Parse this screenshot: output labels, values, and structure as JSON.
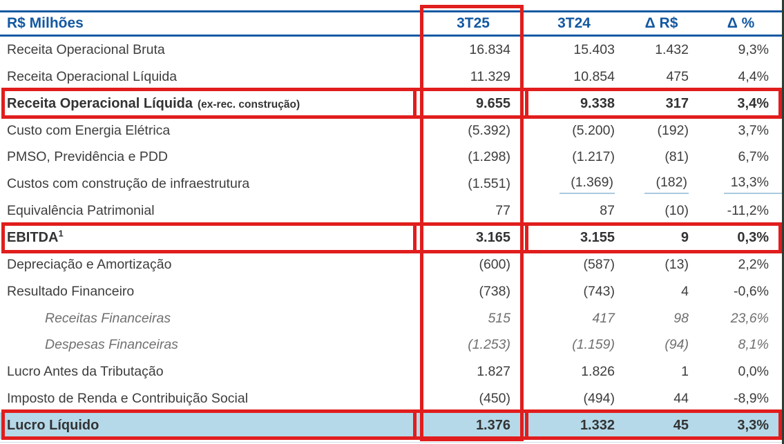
{
  "colors": {
    "header_blue": "#1358a1",
    "highlight_red": "#e11d1d",
    "net_income_row_bg": "#b5d9e9",
    "underline_blue": "#a9c9e0",
    "body_text": "#3d3d3d",
    "financial_detail_text": "#6f6f6f"
  },
  "table": {
    "header": {
      "label": "R$ Milhões",
      "periods": [
        "3T25",
        "3T24",
        "Δ R$",
        "Δ %"
      ]
    },
    "rows": [
      {
        "label": "Receita Operacional Bruta",
        "v1": "16.834",
        "v2": "15.403",
        "v3": "1.432",
        "v4": "9,3%"
      },
      {
        "label": "Receita Operacional Líquida",
        "v1": "11.329",
        "v2": "10.854",
        "v3": "475",
        "v4": "4,4%"
      },
      {
        "label": "Receita Operacional Líquida",
        "suffix": "(ex-rec. construção)",
        "v1": "9.655",
        "v2": "9.338",
        "v3": "317",
        "v4": "3,4%"
      },
      {
        "label": "Custo com Energia Elétrica",
        "v1": "(5.392)",
        "v2": "(5.200)",
        "v3": "(192)",
        "v4": "3,7%"
      },
      {
        "label": "PMSO, Previdência e PDD",
        "v1": "(1.298)",
        "v2": "(1.217)",
        "v3": "(81)",
        "v4": "6,7%"
      },
      {
        "label": "Custos com construção de infraestrutura",
        "v1": "(1.551)",
        "v2": "(1.369)",
        "v3": "(182)",
        "v4": "13,3%"
      },
      {
        "label": "Equivalência Patrimonial",
        "v1": "77",
        "v2": "87",
        "v3": "(10)",
        "v4": "-11,2%"
      },
      {
        "label": "EBITDA",
        "sup": "1",
        "v1": "3.165",
        "v2": "3.155",
        "v3": "9",
        "v4": "0,3%"
      },
      {
        "label": "Depreciação e Amortização",
        "v1": "(600)",
        "v2": "(587)",
        "v3": "(13)",
        "v4": "2,2%"
      },
      {
        "label": "Resultado Financeiro",
        "v1": "(738)",
        "v2": "(743)",
        "v3": "4",
        "v4": "-0,6%"
      },
      {
        "label": "Receitas Financeiras",
        "v1": "515",
        "v2": "417",
        "v3": "98",
        "v4": "23,6%"
      },
      {
        "label": "Despesas Financeiras",
        "v1": "(1.253)",
        "v2": "(1.159)",
        "v3": "(94)",
        "v4": "8,1%"
      },
      {
        "label": "Lucro Antes da Tributação",
        "v1": "1.827",
        "v2": "1.826",
        "v3": "1",
        "v4": "0,0%"
      },
      {
        "label": "Imposto de Renda e Contribuição Social",
        "v1": "(450)",
        "v2": "(494)",
        "v3": "44",
        "v4": "-8,9%"
      },
      {
        "label": "Lucro Líquido",
        "v1": "1.376",
        "v2": "1.332",
        "v3": "45",
        "v4": "3,3%"
      }
    ]
  }
}
